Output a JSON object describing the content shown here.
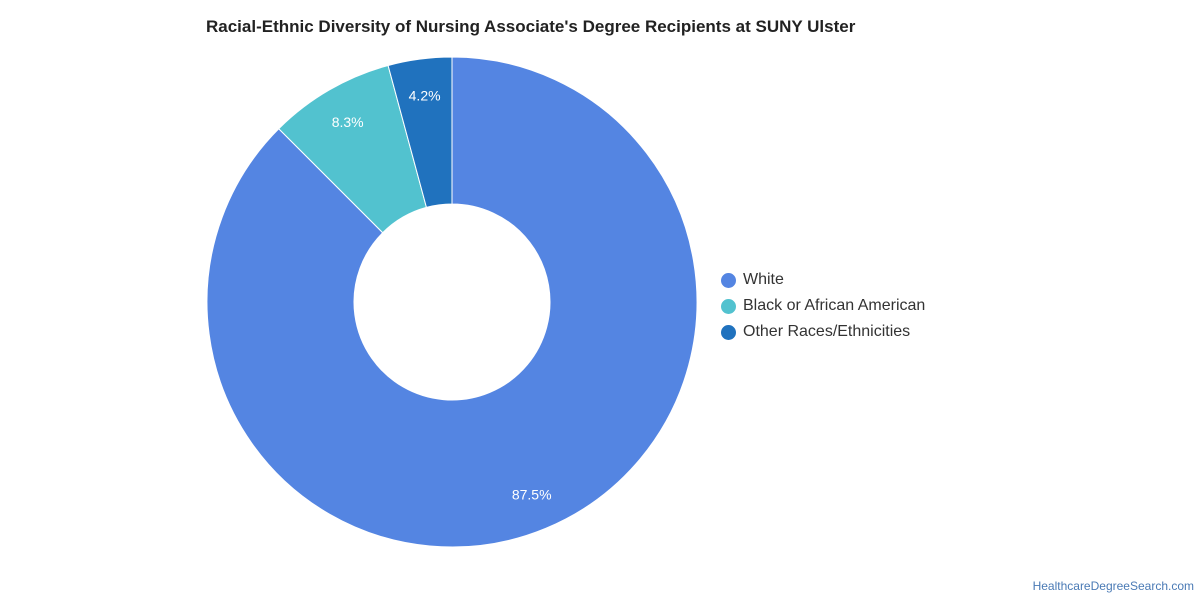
{
  "chart_data": {
    "type": "pie",
    "title": "Racial-Ethnic Diversity of Nursing Associate's Degree Recipients at SUNY Ulster",
    "donut": true,
    "legend_position": "right",
    "slices": [
      {
        "name": "White",
        "value": 87.5,
        "label": "87.5%",
        "color": "#5485e2"
      },
      {
        "name": "Black or African American",
        "value": 8.3,
        "label": "8.3%",
        "color": "#52c2cf"
      },
      {
        "name": "Other Races/Ethnicities",
        "value": 4.2,
        "label": "4.2%",
        "color": "#2072be"
      }
    ]
  },
  "credit": "HealthcareDegreeSearch.com"
}
